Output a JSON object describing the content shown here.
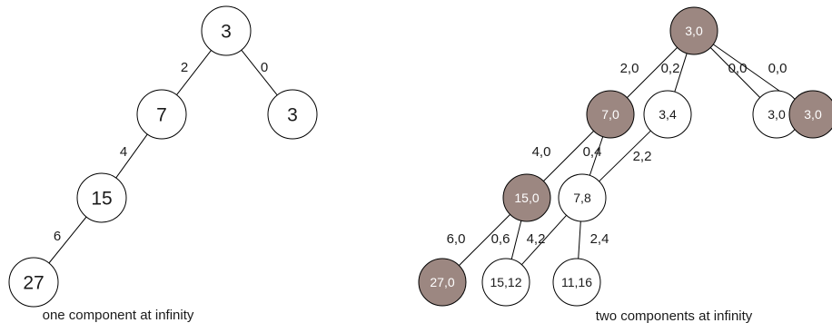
{
  "colors": {
    "background": "#ffffff",
    "stroke": "#000000",
    "node_fill": "#ffffff",
    "node_filled": "#9c8781",
    "text_dark": "#1a1a1a",
    "text_light": "#ffffff"
  },
  "left_tree": {
    "caption": "one component at infinity",
    "nodes": [
      {
        "id": "a",
        "label": "3",
        "filled": false
      },
      {
        "id": "b",
        "label": "7",
        "filled": false
      },
      {
        "id": "c",
        "label": "3",
        "filled": false
      },
      {
        "id": "d",
        "label": "15",
        "filled": false
      },
      {
        "id": "e",
        "label": "27",
        "filled": false
      }
    ],
    "edges": [
      {
        "from": "a",
        "to": "b",
        "label": "2"
      },
      {
        "from": "a",
        "to": "c",
        "label": "0"
      },
      {
        "from": "b",
        "to": "d",
        "label": "4"
      },
      {
        "from": "d",
        "to": "e",
        "label": "6"
      }
    ]
  },
  "right_tree": {
    "caption": "two components at infinity",
    "nodes": [
      {
        "id": "r",
        "label": "3,0",
        "filled": true
      },
      {
        "id": "n70",
        "label": "7,0",
        "filled": true
      },
      {
        "id": "n34",
        "label": "3,4",
        "filled": false
      },
      {
        "id": "n30w",
        "label": "3,0",
        "filled": false
      },
      {
        "id": "n30g",
        "label": "3,0",
        "filled": true
      },
      {
        "id": "n150",
        "label": "15,0",
        "filled": true
      },
      {
        "id": "n78",
        "label": "7,8",
        "filled": false
      },
      {
        "id": "n270",
        "label": "27,0",
        "filled": true
      },
      {
        "id": "n1512",
        "label": "15,12",
        "filled": false
      },
      {
        "id": "n1116",
        "label": "11,16",
        "filled": false
      }
    ],
    "edges": [
      {
        "from": "r",
        "to": "n70",
        "label": "2,0"
      },
      {
        "from": "r",
        "to": "n34",
        "label": "0,2"
      },
      {
        "from": "r",
        "to": "n30w",
        "label": "0,0"
      },
      {
        "from": "r",
        "to": "n30g",
        "label": "0,0"
      },
      {
        "from": "n70",
        "to": "n150",
        "label": "4,0"
      },
      {
        "from": "n70",
        "to": "n78",
        "label": "0,4"
      },
      {
        "from": "n34",
        "to": "n78",
        "label": "2,2"
      },
      {
        "from": "n150",
        "to": "n270",
        "label": "6,0"
      },
      {
        "from": "n150",
        "to": "n1512",
        "label": "0,6"
      },
      {
        "from": "n78",
        "to": "n1512",
        "label": "4,2"
      },
      {
        "from": "n78",
        "to": "n1116",
        "label": "2,4"
      }
    ]
  }
}
